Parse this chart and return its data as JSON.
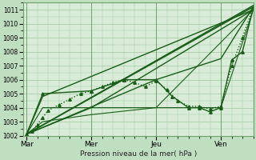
{
  "xlabel": "Pression niveau de la mer( hPa )",
  "bg_color": "#c0dfc0",
  "plot_bg": "#d8ecd8",
  "grid_color": "#a0c8a0",
  "line_color": "#1a5c1a",
  "ylim": [
    1002.0,
    1011.5
  ],
  "yticks": [
    1002,
    1003,
    1004,
    1005,
    1006,
    1007,
    1008,
    1009,
    1010,
    1011
  ],
  "xtick_labels": [
    "Mar",
    "Mer",
    "Jeu",
    "Ven"
  ],
  "xtick_positions": [
    0.0,
    1.0,
    2.0,
    3.0
  ],
  "x_max": 3.5,
  "vlines": [
    0.0,
    1.0,
    2.0,
    3.0
  ],
  "series": [
    {
      "x": [
        0.0,
        0.083,
        0.167,
        0.25,
        0.333,
        0.5,
        0.667,
        0.833,
        1.0,
        1.167,
        1.333,
        1.5,
        1.667,
        1.833,
        2.0,
        2.167,
        2.333,
        2.5,
        2.667,
        2.833,
        3.0,
        3.167,
        3.333,
        3.5
      ],
      "y": [
        1002.1,
        1002.3,
        1002.8,
        1003.3,
        1003.8,
        1004.2,
        1004.6,
        1005.0,
        1005.2,
        1005.5,
        1005.8,
        1006.0,
        1005.8,
        1005.5,
        1005.9,
        1005.3,
        1004.5,
        1004.1,
        1004.1,
        1003.9,
        1004.1,
        1007.0,
        1009.0,
        1011.2
      ],
      "style": ":",
      "marker": "^",
      "markersize": 2.5,
      "linewidth": 1.0
    },
    {
      "x": [
        0.0,
        3.5
      ],
      "y": [
        1002.1,
        1011.3
      ],
      "style": "-",
      "marker": null,
      "markersize": 0,
      "linewidth": 1.2
    },
    {
      "x": [
        0.0,
        0.25,
        3.5
      ],
      "y": [
        1002.1,
        1004.8,
        1011.0
      ],
      "style": "-",
      "marker": null,
      "markersize": 0,
      "linewidth": 1.0
    },
    {
      "x": [
        0.0,
        1.0,
        3.5
      ],
      "y": [
        1002.1,
        1004.0,
        1011.0
      ],
      "style": "-",
      "marker": null,
      "markersize": 0,
      "linewidth": 1.0
    },
    {
      "x": [
        0.0,
        0.25,
        1.0,
        2.0,
        3.5
      ],
      "y": [
        1002.1,
        1004.0,
        1004.0,
        1004.0,
        1011.0
      ],
      "style": "-",
      "marker": null,
      "markersize": 0,
      "linewidth": 0.8
    },
    {
      "x": [
        0.0,
        0.25,
        1.0,
        2.0,
        3.0,
        3.5
      ],
      "y": [
        1002.1,
        1003.0,
        1003.5,
        1004.0,
        1004.0,
        1011.0
      ],
      "style": "-",
      "marker": null,
      "markersize": 0,
      "linewidth": 0.8
    },
    {
      "x": [
        0.0,
        0.25,
        1.0,
        1.5,
        2.0,
        2.25,
        2.5,
        2.667,
        2.833,
        3.0,
        3.167,
        3.333,
        3.5
      ],
      "y": [
        1002.1,
        1005.0,
        1005.2,
        1006.0,
        1006.0,
        1004.8,
        1004.0,
        1004.0,
        1003.7,
        1004.0,
        1007.4,
        1008.0,
        1011.1
      ],
      "style": "-",
      "marker": "^",
      "markersize": 2.5,
      "linewidth": 1.0
    },
    {
      "x": [
        0.0,
        3.5,
        3.0,
        2.0,
        0.0
      ],
      "y": [
        1002.1,
        1011.2,
        1007.5,
        1006.0,
        1002.1
      ],
      "style": "-",
      "marker": null,
      "markersize": 0,
      "linewidth": 1.0
    }
  ]
}
